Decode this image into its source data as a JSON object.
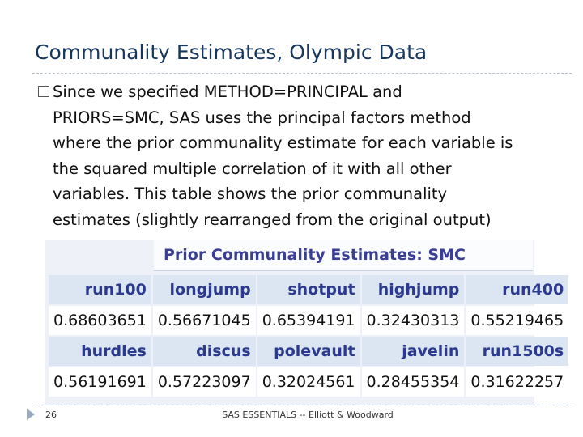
{
  "slide": {
    "title": "Communality Estimates, Olympic Data",
    "body_lines": [
      "Since we specified METHOD=PRINCIPAL and",
      "PRIORS=SMC, SAS uses the principal factors method",
      "where the prior communality estimate for each variable is",
      "the squared multiple  correlation of it with all other",
      "variables. This table shows the prior communality",
      "estimates (slightly rearranged from the original output)"
    ],
    "page_number": "26",
    "footer": "SAS ESSENTIALS -- Elliott & Woodward"
  },
  "table": {
    "caption": "Prior Communality Estimates: SMC",
    "header_row_1": [
      "run100",
      "longjump",
      "shotput",
      "highjump",
      "run400"
    ],
    "value_row_1": [
      "0.68603651",
      "0.56671045",
      "0.65394191",
      "0.32430313",
      "0.55219465"
    ],
    "header_row_2": [
      "hurdles",
      "discus",
      "polevault",
      "javelin",
      "run1500s"
    ],
    "value_row_2": [
      "0.56191691",
      "0.57223097",
      "0.32024561",
      "0.28455354",
      "0.31622257"
    ]
  },
  "colors": {
    "title": "#17375e",
    "header_text": "#2b3a8e",
    "header_bg": "#dce5f2"
  }
}
